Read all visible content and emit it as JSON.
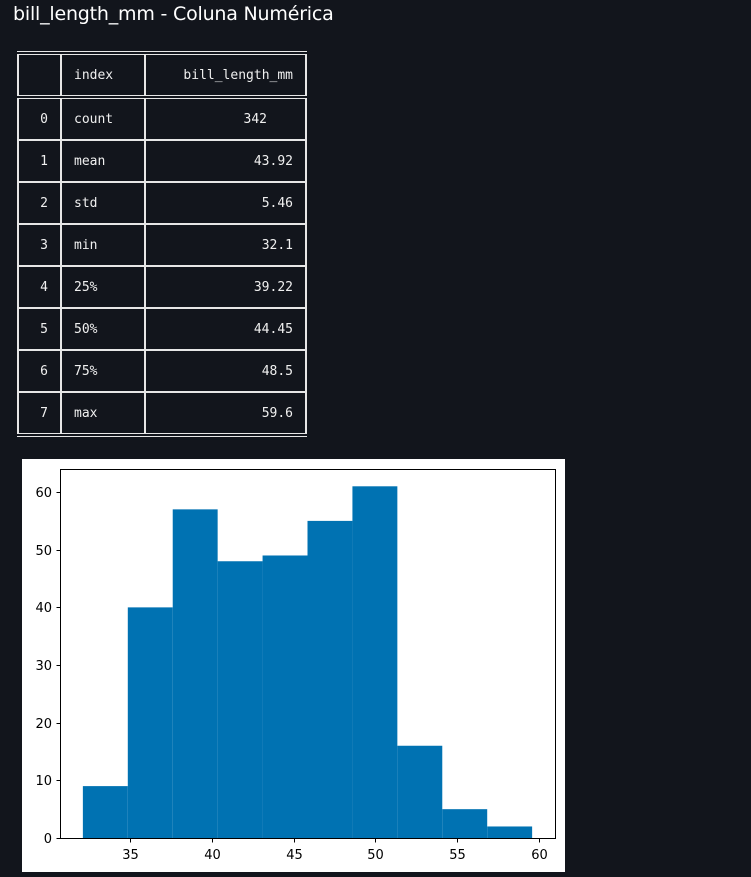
{
  "page": {
    "title": "bill_length_mm - Coluna Numérica"
  },
  "table": {
    "headers": [
      "",
      "index",
      "bill_length_mm"
    ],
    "rows": [
      {
        "row": "0",
        "index": "count",
        "value": "342"
      },
      {
        "row": "1",
        "index": "mean",
        "value": "43.92"
      },
      {
        "row": "2",
        "index": "std",
        "value": "5.46"
      },
      {
        "row": "3",
        "index": "min",
        "value": "32.1"
      },
      {
        "row": "4",
        "index": "25%",
        "value": "39.22"
      },
      {
        "row": "5",
        "index": "50%",
        "value": "44.45"
      },
      {
        "row": "6",
        "index": "75%",
        "value": "48.5"
      },
      {
        "row": "7",
        "index": "max",
        "value": "59.6"
      }
    ]
  },
  "chart_data": {
    "type": "bar",
    "subtype": "histogram",
    "title": "",
    "xlabel": "",
    "ylabel": "",
    "bin_edges": [
      32.1,
      34.85,
      37.6,
      40.35,
      43.1,
      45.85,
      48.6,
      51.35,
      54.1,
      56.85,
      59.6
    ],
    "counts": [
      9,
      40,
      57,
      48,
      49,
      55,
      61,
      16,
      5,
      2
    ],
    "xlim": [
      30.7,
      61.0
    ],
    "ylim": [
      0,
      64
    ],
    "xticks": [
      35,
      40,
      45,
      50,
      55,
      60
    ],
    "yticks": [
      0,
      10,
      20,
      30,
      40,
      50,
      60
    ],
    "bar_color": "#0072b2",
    "grid": false
  },
  "colors": {
    "page_background": "#12151c",
    "title_text": "#ffffff",
    "table_text": "#f0f0f0",
    "table_border": "#e6e6e6",
    "chart_background": "#ffffff"
  }
}
